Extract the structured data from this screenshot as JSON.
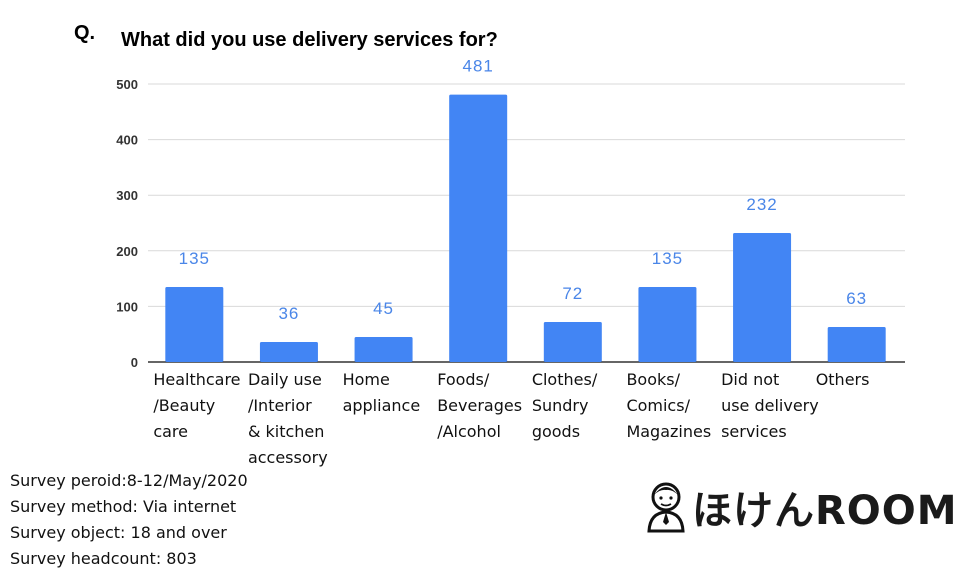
{
  "header": {
    "q_mark": "Q.",
    "title": "What did you use delivery services for?"
  },
  "chart_data": {
    "type": "bar",
    "title": "What did you use delivery services for?",
    "categories": [
      "Healthcare\n/Beauty\ncare",
      "Daily use\n/Interior\n& kitchen\naccessory",
      "Home\nappliance",
      "Foods/\nBeverages\n/Alcohol",
      "Clothes/\nSundry\ngoods",
      "Books/\nComics/\nMagazines",
      "Did not\nuse delivery\nservices",
      "Others"
    ],
    "values": [
      135,
      36,
      45,
      481,
      72,
      135,
      232,
      63
    ],
    "ylim": [
      0,
      500
    ],
    "yticks": [
      0,
      100,
      200,
      300,
      400,
      500
    ],
    "grid": true,
    "bar_color": "#4285f4",
    "label_color": "#4a86e8"
  },
  "footer": {
    "lines": [
      "Survey peroid:8-12/May/2020",
      "Survey method: Via internet",
      "Survey object: 18 and over",
      "Survey headcount: 803"
    ]
  },
  "brand": {
    "logo_text": "ほけんROOM",
    "icon": "person-avatar-icon"
  }
}
